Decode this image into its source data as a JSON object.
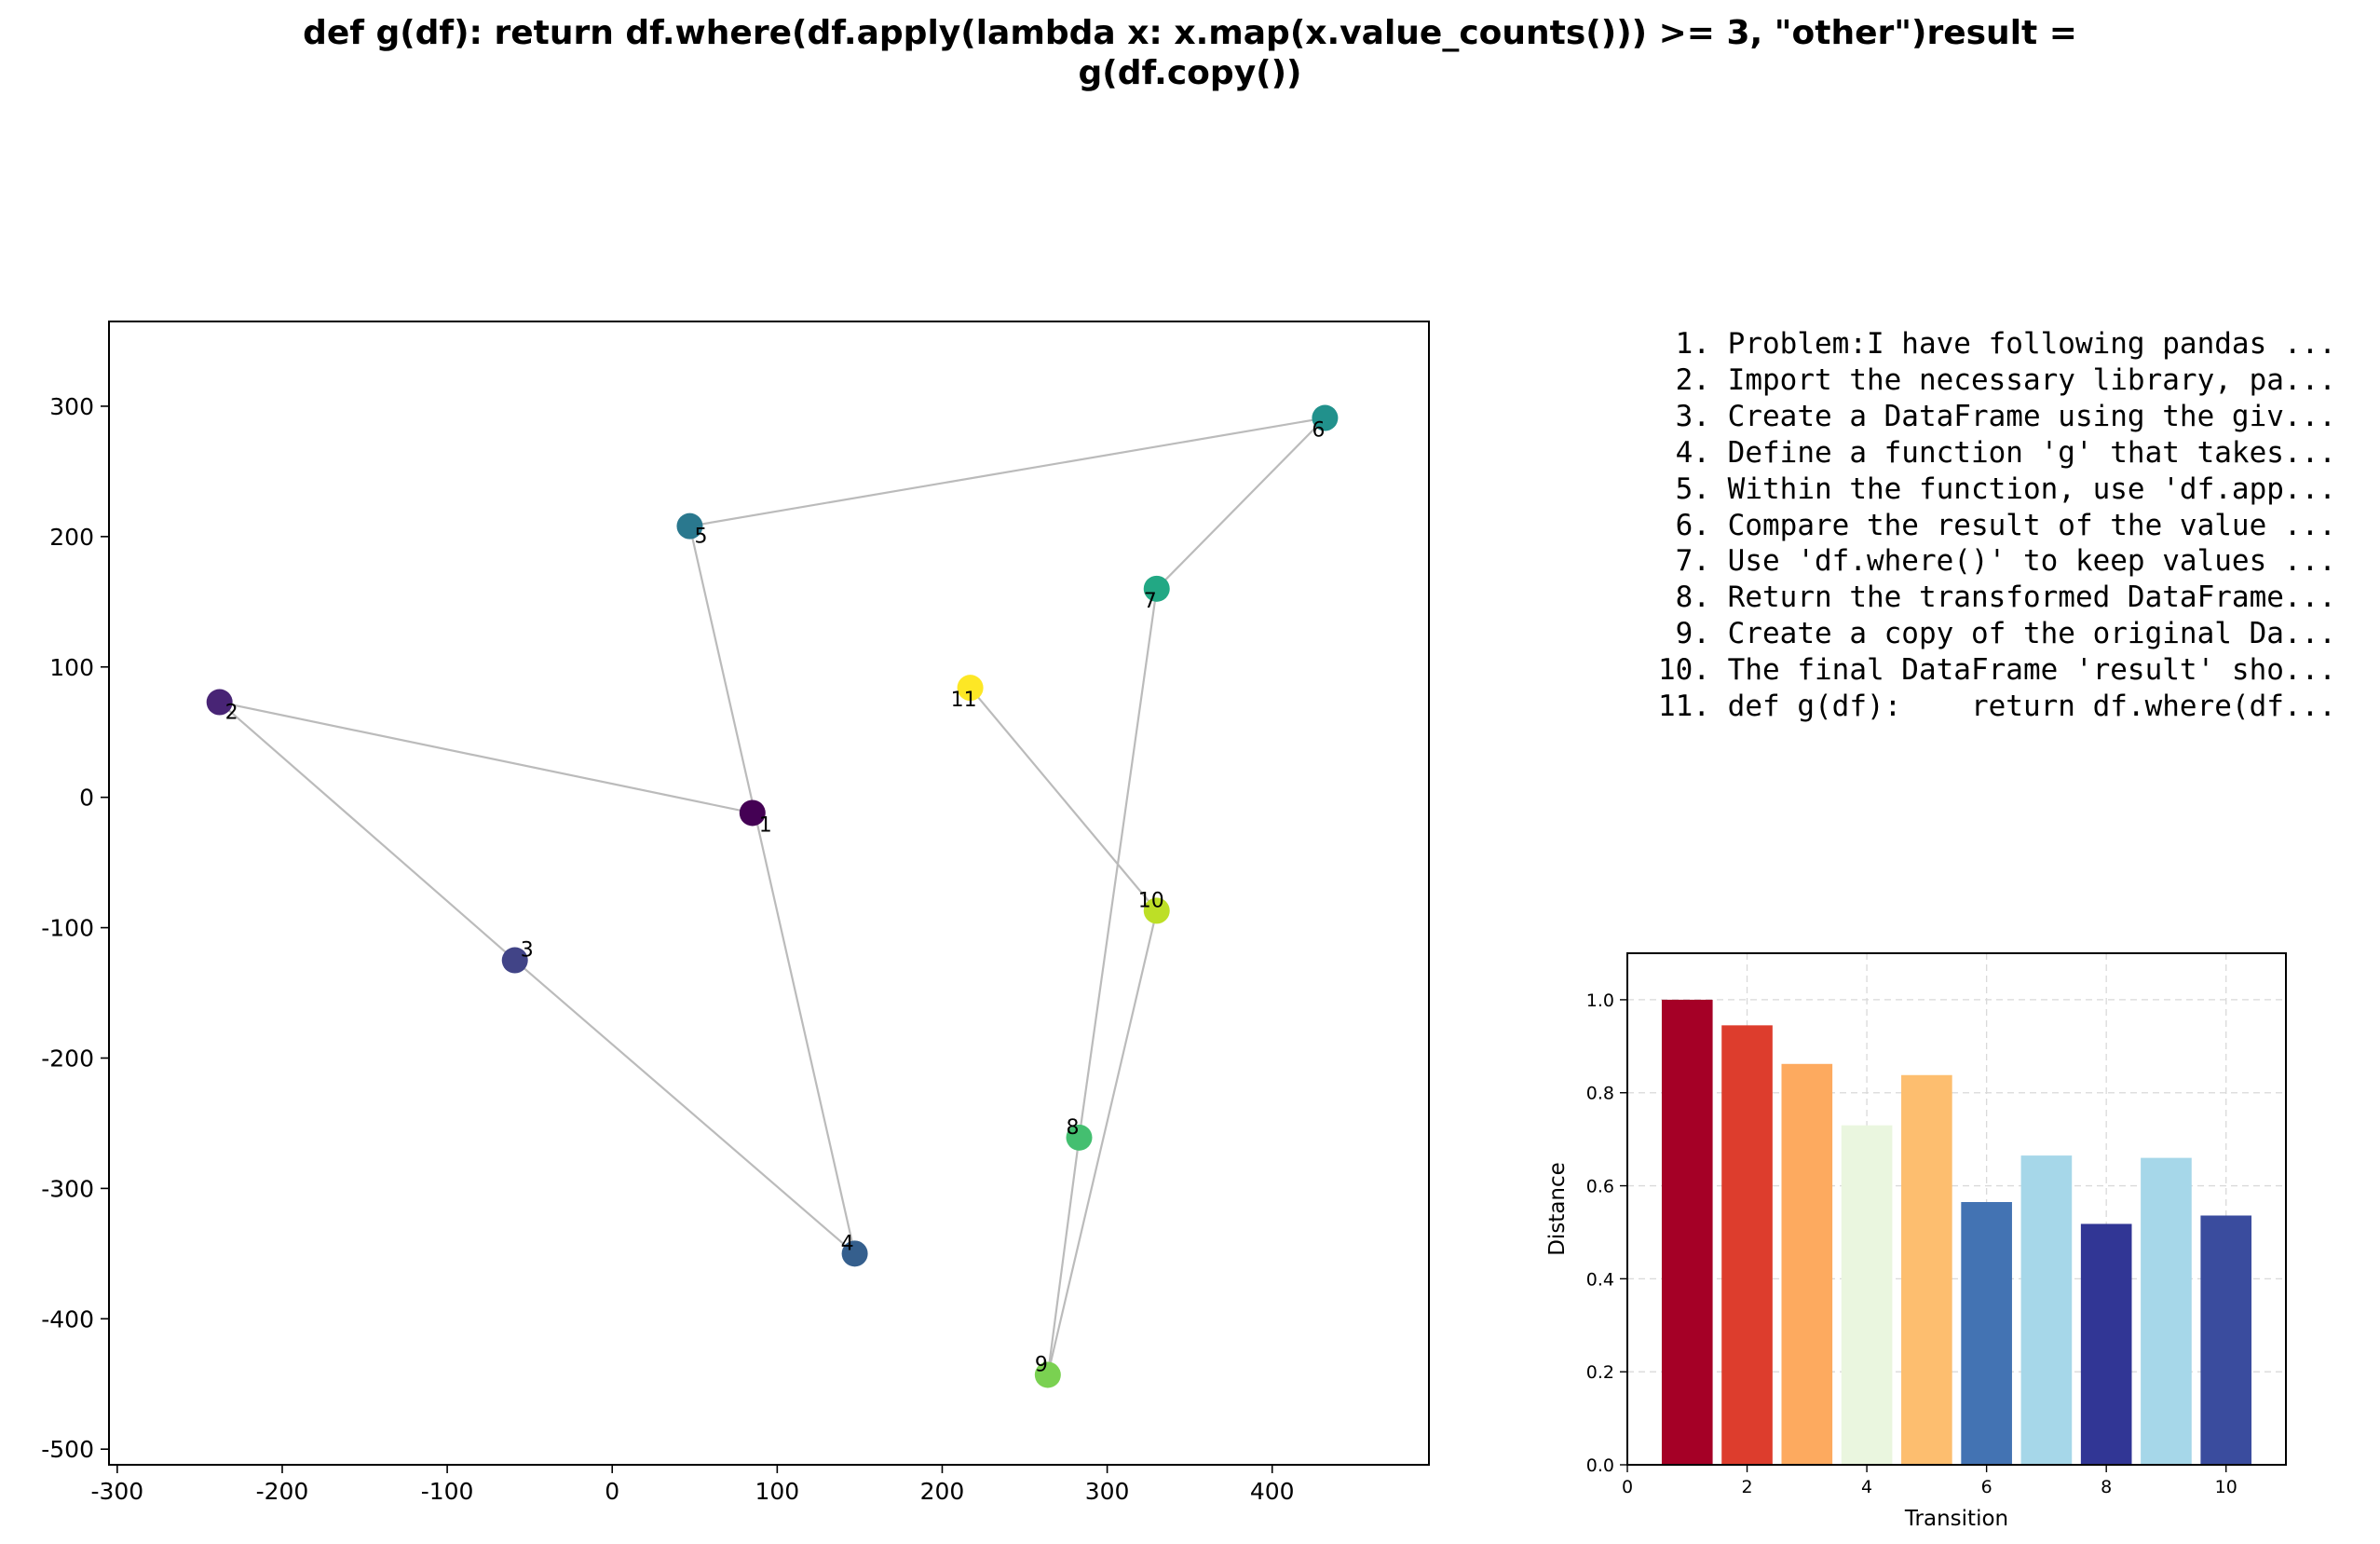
{
  "title_lines": [
    "def g(df):    return df.where(df.apply(lambda x: x.map(x.value_counts())) >= 3, \"other\")result =",
    "g(df.copy())"
  ],
  "steps": [
    {
      "num": "1.",
      "text": "Problem:I have following pandas ..."
    },
    {
      "num": "2.",
      "text": "Import the necessary library, pa..."
    },
    {
      "num": "3.",
      "text": "Create a DataFrame using the giv..."
    },
    {
      "num": "4.",
      "text": "Define a function 'g' that takes..."
    },
    {
      "num": "5.",
      "text": "Within the function, use 'df.app..."
    },
    {
      "num": "6.",
      "text": "Compare the result of the value ..."
    },
    {
      "num": "7.",
      "text": "Use 'df.where()' to keep values ..."
    },
    {
      "num": "8.",
      "text": "Return the transformed DataFrame..."
    },
    {
      "num": "9.",
      "text": "Create a copy of the original Da..."
    },
    {
      "num": "10.",
      "text": "The final DataFrame 'result' sho..."
    },
    {
      "num": "11.",
      "text": "def g(df):    return df.where(df..."
    }
  ],
  "chart_data": [
    {
      "type": "scatter",
      "xlim": [
        -305,
        495
      ],
      "ylim": [
        -512,
        365
      ],
      "xticks": [
        -300,
        -200,
        -100,
        0,
        100,
        200,
        300,
        400
      ],
      "yticks": [
        300,
        200,
        100,
        0,
        -100,
        -200,
        -300,
        -400,
        -500
      ],
      "grid": false,
      "connected": true,
      "colormap": "viridis",
      "line_color": "#bbbbbb",
      "points": [
        {
          "label": "1",
          "x": 85,
          "y": -12,
          "color": "#440154"
        },
        {
          "label": "2",
          "x": -238,
          "y": 73,
          "color": "#482475"
        },
        {
          "label": "3",
          "x": -59,
          "y": -125,
          "color": "#414487"
        },
        {
          "label": "4",
          "x": 147,
          "y": -350,
          "color": "#355f8d"
        },
        {
          "label": "5",
          "x": 47,
          "y": 208,
          "color": "#2a788e"
        },
        {
          "label": "6",
          "x": 432,
          "y": 291,
          "color": "#21918c"
        },
        {
          "label": "7",
          "x": 330,
          "y": 160,
          "color": "#22a884"
        },
        {
          "label": "8",
          "x": 283,
          "y": -261,
          "color": "#44bf70"
        },
        {
          "label": "9",
          "x": 264,
          "y": -443,
          "color": "#7ad151"
        },
        {
          "label": "10",
          "x": 330,
          "y": -87,
          "color": "#bddf26"
        },
        {
          "label": "11",
          "x": 217,
          "y": 84,
          "color": "#fde725"
        }
      ]
    },
    {
      "type": "bar",
      "xlabel": "Transition",
      "ylabel": "Distance",
      "xlim": [
        0,
        11
      ],
      "ylim": [
        0,
        1.1
      ],
      "xticks": [
        0,
        2,
        4,
        6,
        8,
        10
      ],
      "yticks": [
        0.0,
        0.2,
        0.4,
        0.6,
        0.8,
        1.0
      ],
      "grid": true,
      "bars": [
        {
          "x": 1,
          "value": 1.0,
          "color": "#a50026"
        },
        {
          "x": 2,
          "value": 0.945,
          "color": "#dd3d2d"
        },
        {
          "x": 3,
          "value": 0.862,
          "color": "#fdaa5f"
        },
        {
          "x": 4,
          "value": 0.73,
          "color": "#eaf6df"
        },
        {
          "x": 5,
          "value": 0.838,
          "color": "#fdbe6f"
        },
        {
          "x": 6,
          "value": 0.565,
          "color": "#4373b3"
        },
        {
          "x": 7,
          "value": 0.665,
          "color": "#a6d7e9"
        },
        {
          "x": 8,
          "value": 0.518,
          "color": "#313695"
        },
        {
          "x": 9,
          "value": 0.66,
          "color": "#a6d7e9"
        },
        {
          "x": 10,
          "value": 0.536,
          "color": "#3a4c9e"
        }
      ]
    }
  ]
}
